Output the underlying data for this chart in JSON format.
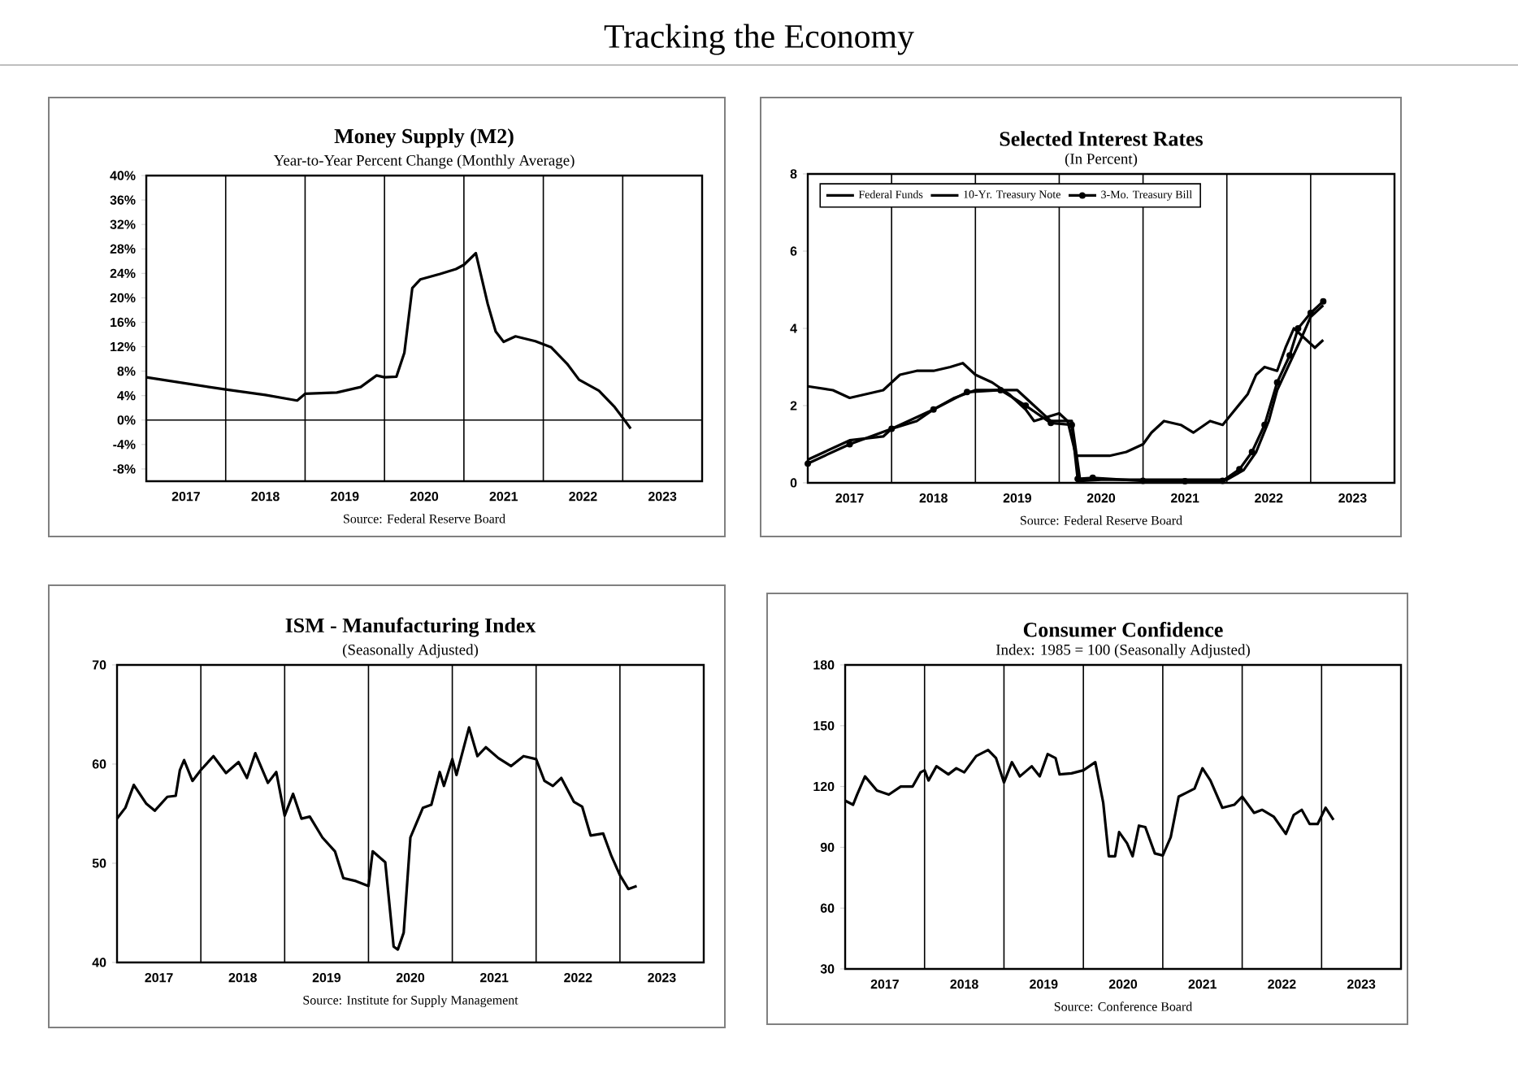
{
  "chart_data": [
    {
      "type": "line",
      "title": "Money Supply (M2)",
      "subtitle": "Year-to-Year Percent Change (Monthly Average)",
      "annotations": [
        "Tracking the Economy",
        "Source: Federal Reserve Board"
      ],
      "xlim": [
        2017,
        2024
      ],
      "xticks": [
        {
          "value": 2017.5,
          "label": "2017"
        },
        {
          "value": 2018.5,
          "label": "2018"
        },
        {
          "value": 2019.5,
          "label": "2019"
        },
        {
          "value": 2020.5,
          "label": "2020"
        },
        {
          "value": 2021.5,
          "label": "2021"
        },
        {
          "value": 2022.5,
          "label": "2022"
        },
        {
          "value": 2023.5,
          "label": "2023"
        }
      ],
      "ylim": [
        -10,
        40
      ],
      "yticks": [
        {
          "value": 40,
          "label": "40%"
        },
        {
          "value": 36,
          "label": "36%"
        },
        {
          "value": 32,
          "label": "32%"
        },
        {
          "value": 28,
          "label": "28%"
        },
        {
          "value": 24,
          "label": "24%"
        },
        {
          "value": 20,
          "label": "20%"
        },
        {
          "value": 16,
          "label": "16%"
        },
        {
          "value": 12,
          "label": "12%"
        },
        {
          "value": 8,
          "label": "8%"
        },
        {
          "value": 4,
          "label": "4%"
        },
        {
          "value": 0,
          "label": "0%"
        },
        {
          "value": -4,
          "label": "-4%"
        },
        {
          "value": -8,
          "label": "-8%"
        }
      ],
      "ref_lines": [
        {
          "axis": "x",
          "value": 2018
        },
        {
          "axis": "x",
          "value": 2019
        },
        {
          "axis": "x",
          "value": 2020
        },
        {
          "axis": "x",
          "value": 2021
        },
        {
          "axis": "x",
          "value": 2022
        },
        {
          "axis": "x",
          "value": 2023
        },
        {
          "axis": "y",
          "value": 0
        }
      ],
      "series": [
        {
          "color": "#000000",
          "x": [
            2017.0,
            2018.0,
            2018.5,
            2018.9,
            2019.0,
            2019.4,
            2019.7,
            2019.9,
            2020.0,
            2020.15,
            2020.25,
            2020.35,
            2020.45,
            2020.7,
            2020.9,
            2021.0,
            2021.15,
            2021.3,
            2021.4,
            2021.5,
            2021.65,
            2021.9,
            2022.1,
            2022.3,
            2022.45,
            2022.7,
            2022.9,
            2023.05,
            2023.1
          ],
          "values": [
            7.0,
            5.0,
            4.1,
            3.2,
            4.3,
            4.5,
            5.4,
            7.3,
            7.0,
            7.1,
            11.0,
            21.6,
            23.0,
            23.9,
            24.7,
            25.4,
            27.3,
            19.0,
            14.5,
            12.8,
            13.7,
            12.9,
            11.9,
            9.2,
            6.6,
            4.8,
            2.1,
            -0.5,
            -1.4
          ]
        }
      ]
    },
    {
      "type": "line",
      "title": "Selected Interest Rates",
      "subtitle": "(In Percent)",
      "annotations": [
        "Source: Federal Reserve Board"
      ],
      "legend": "top left",
      "xlim": [
        2017,
        2024
      ],
      "xticks": [
        {
          "value": 2017.5,
          "label": "2017"
        },
        {
          "value": 2018.5,
          "label": "2018"
        },
        {
          "value": 2019.5,
          "label": "2019"
        },
        {
          "value": 2020.5,
          "label": "2020"
        },
        {
          "value": 2021.5,
          "label": "2021"
        },
        {
          "value": 2022.5,
          "label": "2022"
        },
        {
          "value": 2023.5,
          "label": "2023"
        }
      ],
      "ylim": [
        0,
        8
      ],
      "yticks": [
        0,
        2,
        4,
        6,
        8
      ],
      "ref_lines": [
        {
          "axis": "x",
          "value": 2018
        },
        {
          "axis": "x",
          "value": 2019
        },
        {
          "axis": "x",
          "value": 2020
        },
        {
          "axis": "x",
          "value": 2021
        },
        {
          "axis": "x",
          "value": 2022
        },
        {
          "axis": "x",
          "value": 2023
        }
      ],
      "series": [
        {
          "name": "Federal Funds",
          "color": "#000000",
          "x": [
            2017.0,
            2017.2,
            2017.5,
            2017.9,
            2018.0,
            2018.3,
            2018.5,
            2018.75,
            2019.0,
            2019.5,
            2019.7,
            2019.9,
            2020.15,
            2020.25,
            2020.5,
            2021.0,
            2021.5,
            2022.0,
            2022.2,
            2022.35,
            2022.5,
            2022.6,
            2022.75,
            2022.9,
            2023.0,
            2023.15
          ],
          "values": [
            0.6,
            0.8,
            1.1,
            1.2,
            1.4,
            1.6,
            1.9,
            2.2,
            2.4,
            2.4,
            2.0,
            1.6,
            1.6,
            0.05,
            0.08,
            0.08,
            0.08,
            0.08,
            0.33,
            0.8,
            1.6,
            2.4,
            3.1,
            3.8,
            4.3,
            4.6
          ]
        },
        {
          "name": "10-Yr. Treasury Note",
          "color": "#000000",
          "x": [
            2017.0,
            2017.3,
            2017.5,
            2017.7,
            2017.9,
            2018.1,
            2018.3,
            2018.5,
            2018.7,
            2018.85,
            2019.0,
            2019.2,
            2019.4,
            2019.6,
            2019.7,
            2019.85,
            2020.0,
            2020.1,
            2020.2,
            2020.4,
            2020.6,
            2020.8,
            2021.0,
            2021.1,
            2021.25,
            2021.45,
            2021.6,
            2021.8,
            2021.95,
            2022.1,
            2022.25,
            2022.35,
            2022.45,
            2022.6,
            2022.7,
            2022.8,
            2022.95,
            2023.05,
            2023.15
          ],
          "values": [
            2.5,
            2.4,
            2.2,
            2.3,
            2.4,
            2.8,
            2.9,
            2.9,
            3.0,
            3.1,
            2.8,
            2.6,
            2.3,
            1.9,
            1.6,
            1.7,
            1.8,
            1.6,
            0.7,
            0.7,
            0.7,
            0.8,
            1.0,
            1.3,
            1.6,
            1.5,
            1.3,
            1.6,
            1.5,
            1.9,
            2.3,
            2.8,
            3.0,
            2.9,
            3.5,
            4.0,
            3.7,
            3.5,
            3.7
          ]
        },
        {
          "name": "3-Mo. Treasury Bill",
          "color": "#000000",
          "marker": "circle",
          "x": [
            2017.0,
            2017.5,
            2018.0,
            2018.5,
            2018.9,
            2019.3,
            2019.6,
            2019.9,
            2020.15,
            2020.22,
            2020.4,
            2021.0,
            2021.5,
            2021.95,
            2022.15,
            2022.3,
            2022.45,
            2022.6,
            2022.75,
            2022.85,
            2023.0,
            2023.15
          ],
          "values": [
            0.5,
            1.0,
            1.4,
            1.9,
            2.35,
            2.4,
            2.0,
            1.55,
            1.5,
            0.1,
            0.13,
            0.05,
            0.04,
            0.05,
            0.35,
            0.8,
            1.5,
            2.6,
            3.3,
            4.0,
            4.4,
            4.7
          ]
        }
      ]
    },
    {
      "type": "line",
      "title": "ISM - Manufacturing Index",
      "subtitle": "(Seasonally Adjusted)",
      "annotations": [
        "Source: Institute for Supply Management"
      ],
      "xlim": [
        2017,
        2024
      ],
      "xticks": [
        {
          "value": 2017.5,
          "label": "2017"
        },
        {
          "value": 2018.5,
          "label": "2018"
        },
        {
          "value": 2019.5,
          "label": "2019"
        },
        {
          "value": 2020.5,
          "label": "2020"
        },
        {
          "value": 2021.5,
          "label": "2021"
        },
        {
          "value": 2022.5,
          "label": "2022"
        },
        {
          "value": 2023.5,
          "label": "2023"
        }
      ],
      "ylim": [
        40,
        70
      ],
      "yticks": [
        40,
        50,
        60,
        70
      ],
      "ref_lines": [
        {
          "axis": "x",
          "value": 2018
        },
        {
          "axis": "x",
          "value": 2019
        },
        {
          "axis": "x",
          "value": 2020
        },
        {
          "axis": "x",
          "value": 2021
        },
        {
          "axis": "x",
          "value": 2022
        },
        {
          "axis": "x",
          "value": 2023
        }
      ],
      "series": [
        {
          "color": "#000000",
          "x": [
            2017.0,
            2017.1,
            2017.2,
            2017.35,
            2017.45,
            2017.6,
            2017.7,
            2017.75,
            2017.8,
            2017.9,
            2018.0,
            2018.15,
            2018.3,
            2018.45,
            2018.55,
            2018.65,
            2018.8,
            2018.9,
            2019.0,
            2019.1,
            2019.2,
            2019.3,
            2019.45,
            2019.6,
            2019.7,
            2019.85,
            2020.0,
            2020.05,
            2020.2,
            2020.3,
            2020.35,
            2020.42,
            2020.5,
            2020.65,
            2020.75,
            2020.85,
            2020.9,
            2021.0,
            2021.05,
            2021.2,
            2021.3,
            2021.4,
            2021.55,
            2021.7,
            2021.85,
            2022.0,
            2022.1,
            2022.2,
            2022.3,
            2022.45,
            2022.55,
            2022.65,
            2022.8,
            2022.9,
            2023.0,
            2023.1,
            2023.2
          ],
          "values": [
            54.5,
            55.6,
            57.9,
            56.0,
            55.3,
            56.7,
            56.8,
            59.4,
            60.4,
            58.3,
            59.4,
            60.8,
            59.1,
            60.2,
            58.6,
            61.1,
            58.1,
            59.2,
            54.8,
            57.0,
            54.5,
            54.7,
            52.6,
            51.2,
            48.5,
            48.2,
            47.7,
            51.2,
            50.1,
            41.6,
            41.3,
            43.0,
            52.6,
            55.6,
            55.9,
            59.2,
            57.8,
            60.5,
            58.9,
            63.7,
            60.8,
            61.7,
            60.6,
            59.8,
            60.8,
            60.5,
            58.3,
            57.8,
            58.6,
            56.2,
            55.7,
            52.8,
            53.0,
            50.7,
            48.8,
            47.4,
            47.7
          ]
        }
      ]
    },
    {
      "type": "line",
      "title": "Consumer Confidence",
      "subtitle": "Index: 1985 = 100 (Seasonally Adjusted)",
      "annotations": [
        "Source: Conference Board"
      ],
      "xlim": [
        2017,
        2024
      ],
      "xticks": [
        {
          "value": 2017.5,
          "label": "2017"
        },
        {
          "value": 2018.5,
          "label": "2018"
        },
        {
          "value": 2019.5,
          "label": "2019"
        },
        {
          "value": 2020.5,
          "label": "2020"
        },
        {
          "value": 2021.5,
          "label": "2021"
        },
        {
          "value": 2022.5,
          "label": "2022"
        },
        {
          "value": 2023.5,
          "label": "2023"
        }
      ],
      "ylim": [
        30,
        180
      ],
      "yticks": [
        30,
        60,
        90,
        120,
        150,
        180
      ],
      "ref_lines": [
        {
          "axis": "x",
          "value": 2018
        },
        {
          "axis": "x",
          "value": 2019
        },
        {
          "axis": "x",
          "value": 2020
        },
        {
          "axis": "x",
          "value": 2021
        },
        {
          "axis": "x",
          "value": 2022
        },
        {
          "axis": "x",
          "value": 2023
        }
      ],
      "series": [
        {
          "color": "#000000",
          "x": [
            2017.0,
            2017.1,
            2017.15,
            2017.25,
            2017.4,
            2017.55,
            2017.7,
            2017.85,
            2017.95,
            2018.0,
            2018.05,
            2018.15,
            2018.3,
            2018.4,
            2018.5,
            2018.65,
            2018.8,
            2018.9,
            2019.0,
            2019.1,
            2019.2,
            2019.35,
            2019.45,
            2019.55,
            2019.65,
            2019.7,
            2019.85,
            2020.0,
            2020.15,
            2020.25,
            2020.32,
            2020.4,
            2020.45,
            2020.55,
            2020.62,
            2020.7,
            2020.78,
            2020.9,
            2021.0,
            2021.1,
            2021.2,
            2021.3,
            2021.4,
            2021.5,
            2021.6,
            2021.75,
            2021.9,
            2022.0,
            2022.15,
            2022.25,
            2022.4,
            2022.55,
            2022.65,
            2022.75,
            2022.85,
            2022.95,
            2023.05,
            2023.15
          ],
          "values": [
            113,
            111,
            116,
            125,
            118,
            116,
            120,
            120,
            127,
            128,
            123,
            130,
            126,
            129,
            127,
            135,
            138,
            134,
            122,
            132,
            125,
            130,
            125,
            136,
            134,
            126,
            126.5,
            128,
            132,
            112,
            85.6,
            85.6,
            97.5,
            92,
            85.6,
            100.7,
            100,
            87,
            86,
            95,
            115,
            117,
            119,
            129,
            123,
            109.5,
            111,
            115,
            107,
            108.5,
            105,
            96.6,
            106,
            108.5,
            101.5,
            101.5,
            109.5,
            103.5
          ]
        }
      ]
    }
  ]
}
